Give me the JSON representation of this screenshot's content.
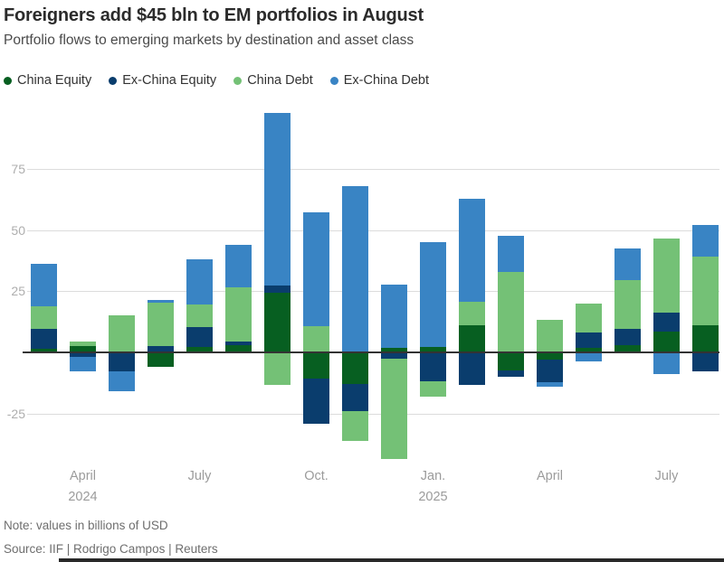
{
  "header": {
    "title": "Foreigners add $45 bln to EM portfolios in August",
    "subtitle": "Portfolio flows to emerging markets by destination and asset class"
  },
  "legend": [
    {
      "label": "China Equity",
      "color": "#075f21"
    },
    {
      "label": "Ex-China Equity",
      "color": "#0a3d6d"
    },
    {
      "label": "China Debt",
      "color": "#74c176"
    },
    {
      "label": "Ex-China Debt",
      "color": "#3984c4"
    }
  ],
  "chart_data": {
    "type": "bar",
    "stacked": true,
    "title": "Foreigners add $45 bln to EM portfolios in August",
    "subtitle": "Portfolio flows to emerging markets by destination and asset class",
    "unit": "billions of USD",
    "grid": true,
    "legend_position": "top",
    "ylim": [
      -50,
      100
    ],
    "y_ticks": [
      75,
      50,
      25,
      -25
    ],
    "categories": [
      "Mar 2024",
      "Apr 2024",
      "May 2024",
      "Jun 2024",
      "Jul 2024",
      "Aug 2024",
      "Sep 2024",
      "Oct 2024",
      "Nov 2024",
      "Dec 2024",
      "Jan 2025",
      "Feb 2025",
      "Mar 2025",
      "Apr 2025",
      "May 2025",
      "Jun 2025",
      "Jul 2025",
      "Aug 2025"
    ],
    "x_tick_labels": [
      {
        "index": 1,
        "lines": [
          "April",
          "2024"
        ]
      },
      {
        "index": 4,
        "lines": [
          "July"
        ]
      },
      {
        "index": 7,
        "lines": [
          "Oct."
        ]
      },
      {
        "index": 10,
        "lines": [
          "Jan.",
          "2025"
        ]
      },
      {
        "index": 13,
        "lines": [
          "April"
        ]
      },
      {
        "index": 16,
        "lines": [
          "July"
        ]
      }
    ],
    "series": [
      {
        "name": "China Equity",
        "color": "#075f21",
        "values": [
          1.5,
          2.5,
          0,
          -5.9,
          2.3,
          2.8,
          24.4,
          -10.7,
          -12.8,
          1.9,
          2.3,
          10.9,
          -7.3,
          -3.0,
          1.7,
          2.8,
          8.5,
          10.9
        ]
      },
      {
        "name": "Ex-China Equity",
        "color": "#0a3d6d",
        "values": [
          8.1,
          -1.8,
          -7.7,
          2.5,
          8.2,
          1.6,
          2.8,
          -18.6,
          -11.1,
          -2.7,
          -11.7,
          -13.4,
          -2.7,
          -9.2,
          6.4,
          6.8,
          7.6,
          -7.9
        ]
      },
      {
        "name": "China Debt",
        "color": "#74c176",
        "values": [
          9.1,
          2.1,
          15.1,
          17.8,
          9.0,
          22.2,
          -13.4,
          10.6,
          -12.3,
          -40.9,
          -6.5,
          9.7,
          32.7,
          13.3,
          11.9,
          20.0,
          30.5,
          28.3
        ]
      },
      {
        "name": "Ex-China Debt",
        "color": "#3984c4",
        "values": [
          17.6,
          -5.9,
          -8.2,
          1.0,
          18.7,
          17.2,
          70.7,
          46.7,
          68.1,
          25.8,
          42.8,
          42.2,
          14.8,
          -1.8,
          -3.8,
          12.9,
          -8.7,
          12.8
        ]
      }
    ]
  },
  "footer": {
    "note": "Note: values in billions of USD",
    "source": "Source: IIF | Rodrigo Campos | Reuters"
  }
}
